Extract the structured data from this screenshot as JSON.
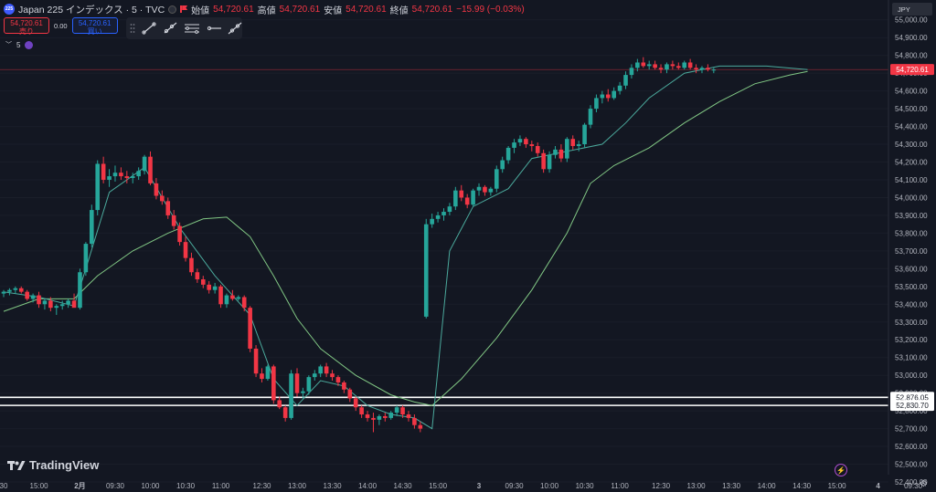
{
  "header": {
    "symbol_badge": "225",
    "title": "Japan 225 インデックス · 5 · TVC",
    "ohlc": [
      {
        "label": "始値",
        "value": "54,720.61"
      },
      {
        "label": "高値",
        "value": "54,720.61"
      },
      {
        "label": "安値",
        "value": "54,720.61"
      },
      {
        "label": "終値",
        "value": "54,720.61"
      }
    ],
    "change": "−15.99 (−0.03%)"
  },
  "trade": {
    "sell_price": "54,720.61",
    "sell_label": "売り",
    "spread": "0.00",
    "buy_price": "54,720.61",
    "buy_label": "買い"
  },
  "toolbar": {
    "icons": [
      "drag-handle-icon",
      "trend-line-icon",
      "ray-icon",
      "parallel-lines-icon",
      "horizontal-ray-icon",
      "extended-line-icon"
    ]
  },
  "indicator": {
    "count": "5"
  },
  "currency": "JPY",
  "logo_text": "TradingView",
  "colors": {
    "background": "#131722",
    "up": "#26a69a",
    "down": "#f23645",
    "ma_fast": "#4ba99c",
    "ma_slow": "#81c784",
    "axis_text": "#b2b5be",
    "price_label": "#f23645"
  },
  "chart_data": {
    "type": "candlestick",
    "title": "",
    "ylim": [
      52400,
      55050
    ],
    "y_ticks": [
      55000,
      54900,
      54800,
      54700,
      54600,
      54500,
      54400,
      54300,
      54200,
      54100,
      54000,
      53900,
      53800,
      53700,
      53600,
      53500,
      53400,
      53300,
      53200,
      53100,
      53000,
      52900,
      52800,
      52700,
      52600,
      52500,
      52400
    ],
    "x_ticks": [
      {
        "label": "30",
        "i": 0
      },
      {
        "label": "15:00",
        "i": 6
      },
      {
        "label": "2月",
        "i": 13
      },
      {
        "label": "09:30",
        "i": 19
      },
      {
        "label": "10:00",
        "i": 25
      },
      {
        "label": "10:30",
        "i": 31
      },
      {
        "label": "11:00",
        "i": 37
      },
      {
        "label": "12:30",
        "i": 44
      },
      {
        "label": "13:00",
        "i": 50
      },
      {
        "label": "13:30",
        "i": 56
      },
      {
        "label": "14:00",
        "i": 62
      },
      {
        "label": "14:30",
        "i": 68
      },
      {
        "label": "15:00",
        "i": 74
      },
      {
        "label": "3",
        "i": 81
      },
      {
        "label": "09:30",
        "i": 87
      },
      {
        "label": "10:00",
        "i": 93
      },
      {
        "label": "10:30",
        "i": 99
      },
      {
        "label": "11:00",
        "i": 105
      },
      {
        "label": "12:30",
        "i": 112
      },
      {
        "label": "13:00",
        "i": 118
      },
      {
        "label": "13:30",
        "i": 124
      },
      {
        "label": "14:00",
        "i": 130
      },
      {
        "label": "14:30",
        "i": 136
      },
      {
        "label": "15:00",
        "i": 142
      },
      {
        "label": "4",
        "i": 149
      },
      {
        "label": "09:30",
        "i": 155
      }
    ],
    "last_price": {
      "value": 54720.61,
      "label": "54,720.61"
    },
    "horizontal_lines": [
      {
        "value": 52876.05,
        "label": "52,876.05"
      },
      {
        "value": 52830.7,
        "label": "52,830.70"
      }
    ],
    "candles": [
      [
        53460,
        53480,
        53440,
        53470
      ],
      [
        53470,
        53490,
        53450,
        53480
      ],
      [
        53480,
        53500,
        53460,
        53490
      ],
      [
        53490,
        53500,
        53460,
        53470
      ],
      [
        53470,
        53480,
        53420,
        53430
      ],
      [
        53430,
        53460,
        53410,
        53450
      ],
      [
        53450,
        53470,
        53380,
        53400
      ],
      [
        53400,
        53430,
        53370,
        53420
      ],
      [
        53420,
        53440,
        53360,
        53380
      ],
      [
        53380,
        53400,
        53340,
        53390
      ],
      [
        53390,
        53420,
        53370,
        53400
      ],
      [
        53400,
        53430,
        53380,
        53420
      ],
      [
        53420,
        53460,
        53400,
        53380
      ],
      [
        53380,
        53600,
        53370,
        53580
      ],
      [
        53580,
        53750,
        53560,
        53740
      ],
      [
        53740,
        53960,
        53720,
        53930
      ],
      [
        53930,
        54210,
        53900,
        54190
      ],
      [
        54190,
        54230,
        54080,
        54100
      ],
      [
        54100,
        54160,
        54060,
        54120
      ],
      [
        54120,
        54180,
        54090,
        54140
      ],
      [
        54140,
        54170,
        54100,
        54120
      ],
      [
        54120,
        54150,
        54080,
        54110
      ],
      [
        54110,
        54140,
        54080,
        54120
      ],
      [
        54120,
        54170,
        54100,
        54150
      ],
      [
        54150,
        54240,
        54130,
        54230
      ],
      [
        54230,
        54260,
        54070,
        54080
      ],
      [
        54080,
        54110,
        53990,
        54010
      ],
      [
        54010,
        54040,
        53960,
        53980
      ],
      [
        53980,
        54000,
        53880,
        53900
      ],
      [
        53900,
        53930,
        53820,
        53840
      ],
      [
        53840,
        53860,
        53730,
        53750
      ],
      [
        53750,
        53780,
        53640,
        53660
      ],
      [
        53660,
        53690,
        53560,
        53580
      ],
      [
        53580,
        53600,
        53520,
        53540
      ],
      [
        53540,
        53560,
        53490,
        53510
      ],
      [
        53510,
        53530,
        53460,
        53480
      ],
      [
        53480,
        53520,
        53460,
        53500
      ],
      [
        53500,
        53510,
        53380,
        53400
      ],
      [
        53400,
        53460,
        53380,
        53450
      ],
      [
        53450,
        53480,
        53420,
        53430
      ],
      [
        53430,
        53450,
        53420,
        53440
      ],
      [
        53440,
        53450,
        53360,
        53380
      ],
      [
        53380,
        53390,
        53130,
        53150
      ],
      [
        53150,
        53170,
        52990,
        53010
      ],
      [
        53010,
        53040,
        52960,
        52980
      ],
      [
        52980,
        53060,
        52970,
        53050
      ],
      [
        53050,
        53060,
        52840,
        52860
      ],
      [
        52860,
        52880,
        52810,
        52820
      ],
      [
        52820,
        52830,
        52740,
        52760
      ],
      [
        52760,
        53030,
        52750,
        53010
      ],
      [
        53010,
        53040,
        52880,
        52900
      ],
      [
        52900,
        52930,
        52870,
        52910
      ],
      [
        52910,
        53000,
        52890,
        52990
      ],
      [
        52990,
        53030,
        52970,
        53010
      ],
      [
        53010,
        53060,
        52990,
        53050
      ],
      [
        53050,
        53070,
        52990,
        53010
      ],
      [
        53010,
        53030,
        52970,
        52990
      ],
      [
        52990,
        53000,
        52940,
        52960
      ],
      [
        52960,
        52970,
        52900,
        52920
      ],
      [
        52920,
        52930,
        52850,
        52870
      ],
      [
        52870,
        52880,
        52800,
        52820
      ],
      [
        52820,
        52830,
        52760,
        52780
      ],
      [
        52780,
        52800,
        52740,
        52760
      ],
      [
        52760,
        52790,
        52680,
        52750
      ],
      [
        52750,
        52780,
        52720,
        52770
      ],
      [
        52770,
        52790,
        52740,
        52760
      ],
      [
        52760,
        52800,
        52750,
        52790
      ],
      [
        52790,
        52830,
        52770,
        52820
      ],
      [
        52820,
        52830,
        52760,
        52780
      ],
      [
        52780,
        52800,
        52740,
        52760
      ],
      [
        52760,
        52780,
        52700,
        52720
      ],
      [
        52720,
        52740,
        52680,
        52700
      ],
      [
        53330,
        53880,
        53320,
        53850
      ],
      [
        53850,
        53910,
        53830,
        53880
      ],
      [
        53880,
        53920,
        53860,
        53900
      ],
      [
        53900,
        53940,
        53870,
        53920
      ],
      [
        53920,
        53970,
        53900,
        53950
      ],
      [
        53950,
        54060,
        53930,
        54040
      ],
      [
        54040,
        54070,
        53980,
        54000
      ],
      [
        54000,
        54020,
        53940,
        53960
      ],
      [
        53960,
        54050,
        53950,
        54040
      ],
      [
        54040,
        54080,
        54010,
        54060
      ],
      [
        54060,
        54070,
        54010,
        54030
      ],
      [
        54030,
        54060,
        54010,
        54050
      ],
      [
        54050,
        54180,
        54030,
        54160
      ],
      [
        54160,
        54230,
        54140,
        54210
      ],
      [
        54210,
        54290,
        54190,
        54280
      ],
      [
        54280,
        54330,
        54250,
        54310
      ],
      [
        54310,
        54350,
        54290,
        54330
      ],
      [
        54330,
        54340,
        54280,
        54300
      ],
      [
        54300,
        54320,
        54260,
        54290
      ],
      [
        54290,
        54310,
        54230,
        54250
      ],
      [
        54250,
        54270,
        54140,
        54160
      ],
      [
        54160,
        54260,
        54140,
        54240
      ],
      [
        54240,
        54290,
        54220,
        54270
      ],
      [
        54270,
        54300,
        54200,
        54220
      ],
      [
        54220,
        54340,
        54200,
        54330
      ],
      [
        54330,
        54350,
        54270,
        54290
      ],
      [
        54290,
        54320,
        54260,
        54300
      ],
      [
        54300,
        54420,
        54280,
        54410
      ],
      [
        54410,
        54520,
        54390,
        54500
      ],
      [
        54500,
        54580,
        54480,
        54560
      ],
      [
        54560,
        54600,
        54530,
        54580
      ],
      [
        54580,
        54610,
        54540,
        54560
      ],
      [
        54560,
        54620,
        54550,
        54600
      ],
      [
        54600,
        54650,
        54580,
        54630
      ],
      [
        54630,
        54710,
        54610,
        54690
      ],
      [
        54690,
        54750,
        54670,
        54730
      ],
      [
        54730,
        54780,
        54710,
        54760
      ],
      [
        54760,
        54790,
        54730,
        54740
      ],
      [
        54740,
        54770,
        54720,
        54750
      ],
      [
        54750,
        54770,
        54720,
        54730
      ],
      [
        54730,
        54750,
        54700,
        54720
      ],
      [
        54720,
        54760,
        54700,
        54750
      ],
      [
        54750,
        54770,
        54720,
        54740
      ],
      [
        54740,
        54760,
        54720,
        54730
      ],
      [
        54730,
        54770,
        54720,
        54760
      ],
      [
        54760,
        54780,
        54720,
        54730
      ],
      [
        54730,
        54750,
        54700,
        54720
      ],
      [
        54720,
        54740,
        54700,
        54730
      ],
      [
        54730,
        54750,
        54710,
        54720
      ],
      [
        54720,
        54730,
        54700,
        54720
      ]
    ],
    "ma_fast": [
      [
        0,
        53470
      ],
      [
        6,
        53440
      ],
      [
        12,
        53390
      ],
      [
        14,
        53600
      ],
      [
        18,
        54030
      ],
      [
        24,
        54170
      ],
      [
        30,
        53830
      ],
      [
        36,
        53560
      ],
      [
        42,
        53340
      ],
      [
        46,
        52980
      ],
      [
        50,
        52830
      ],
      [
        54,
        52970
      ],
      [
        58,
        52940
      ],
      [
        62,
        52830
      ],
      [
        66,
        52780
      ],
      [
        70,
        52760
      ],
      [
        73,
        52700
      ],
      [
        76,
        53700
      ],
      [
        80,
        53950
      ],
      [
        86,
        54050
      ],
      [
        90,
        54220
      ],
      [
        96,
        54260
      ],
      [
        102,
        54300
      ],
      [
        106,
        54420
      ],
      [
        110,
        54560
      ],
      [
        116,
        54700
      ],
      [
        122,
        54740
      ],
      [
        130,
        54740
      ],
      [
        137,
        54720
      ]
    ],
    "ma_slow": [
      [
        0,
        53360
      ],
      [
        6,
        53430
      ],
      [
        12,
        53430
      ],
      [
        16,
        53560
      ],
      [
        22,
        53700
      ],
      [
        28,
        53800
      ],
      [
        34,
        53880
      ],
      [
        38,
        53890
      ],
      [
        42,
        53780
      ],
      [
        46,
        53560
      ],
      [
        50,
        53320
      ],
      [
        54,
        53150
      ],
      [
        60,
        53000
      ],
      [
        66,
        52890
      ],
      [
        70,
        52850
      ],
      [
        73,
        52830
      ],
      [
        78,
        52980
      ],
      [
        84,
        53210
      ],
      [
        90,
        53480
      ],
      [
        96,
        53800
      ],
      [
        100,
        54080
      ],
      [
        104,
        54180
      ],
      [
        110,
        54280
      ],
      [
        116,
        54420
      ],
      [
        122,
        54540
      ],
      [
        128,
        54640
      ],
      [
        134,
        54690
      ],
      [
        137,
        54710
      ]
    ]
  }
}
